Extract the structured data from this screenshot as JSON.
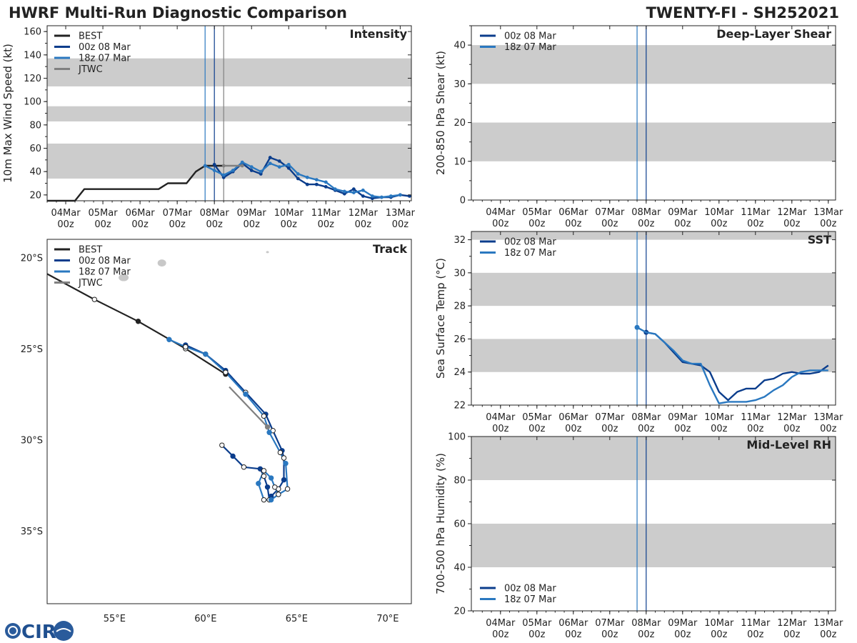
{
  "header": {
    "left_title": "HWRF Multi-Run Diagnostic Comparison",
    "right_title": "TWENTY-FI - SH252021"
  },
  "logo": {
    "text": "CIRA"
  },
  "colors": {
    "best": "#222222",
    "run00z": "#0b3d8c",
    "run18z": "#2a78c0",
    "jtwc": "#808080",
    "band": "#cccccc"
  },
  "chart_data": [
    {
      "id": "intensity",
      "type": "line",
      "title": "Intensity",
      "ylabel": "10m Max Wind Speed (kt)",
      "xlim": [
        -0.5,
        9.3
      ],
      "ylim": [
        15,
        165
      ],
      "yticks": [
        20,
        40,
        60,
        80,
        100,
        120,
        140,
        160
      ],
      "xticks": [
        {
          "x": 0,
          "line1": "04Mar",
          "line2": "00z"
        },
        {
          "x": 1,
          "line1": "05Mar",
          "line2": "00z"
        },
        {
          "x": 2,
          "line1": "06Mar",
          "line2": "00z"
        },
        {
          "x": 3,
          "line1": "07Mar",
          "line2": "00z"
        },
        {
          "x": 4,
          "line1": "08Mar",
          "line2": "00z"
        },
        {
          "x": 5,
          "line1": "09Mar",
          "line2": "00z"
        },
        {
          "x": 6,
          "line1": "10Mar",
          "line2": "00z"
        },
        {
          "x": 7,
          "line1": "11Mar",
          "line2": "00z"
        },
        {
          "x": 8,
          "line1": "12Mar",
          "line2": "00z"
        },
        {
          "x": 9,
          "line1": "13Mar",
          "line2": "00z"
        }
      ],
      "bands": [
        [
          34,
          64
        ],
        [
          83,
          96
        ],
        [
          113,
          137
        ]
      ],
      "vlines": [
        {
          "x": 3.75,
          "color": "#2a78c0"
        },
        {
          "x": 4.0,
          "color": "#0b3d8c"
        },
        {
          "x": 4.25,
          "color": "#808080"
        }
      ],
      "legend": [
        "BEST",
        "00z 08 Mar",
        "18z 07 Mar",
        "JTWC"
      ],
      "series": [
        {
          "name": "BEST",
          "color": "#222222",
          "marker": false,
          "points": [
            [
              -0.5,
              15
            ],
            [
              0.25,
              15
            ],
            [
              0.5,
              25
            ],
            [
              2.5,
              25
            ],
            [
              2.75,
              30
            ],
            [
              3.25,
              30
            ],
            [
              3.5,
              40
            ],
            [
              3.75,
              45
            ],
            [
              4.0,
              45
            ],
            [
              4.25,
              45
            ]
          ]
        },
        {
          "name": "00z 08 Mar",
          "color": "#0b3d8c",
          "marker": true,
          "points": [
            [
              4.0,
              46
            ],
            [
              4.25,
              35
            ],
            [
              4.5,
              40
            ],
            [
              4.75,
              47
            ],
            [
              5.0,
              41
            ],
            [
              5.25,
              38
            ],
            [
              5.5,
              52
            ],
            [
              5.75,
              49
            ],
            [
              6.0,
              43
            ],
            [
              6.25,
              34
            ],
            [
              6.5,
              29
            ],
            [
              6.75,
              29
            ],
            [
              7.0,
              27
            ],
            [
              7.25,
              24
            ],
            [
              7.5,
              21
            ],
            [
              7.75,
              25
            ],
            [
              8.0,
              19
            ],
            [
              8.25,
              17
            ],
            [
              8.5,
              18
            ],
            [
              8.75,
              18
            ],
            [
              9.0,
              20
            ],
            [
              9.25,
              19
            ]
          ]
        },
        {
          "name": "18z 07 Mar",
          "color": "#2a78c0",
          "marker": true,
          "points": [
            [
              3.75,
              45
            ],
            [
              4.0,
              41
            ],
            [
              4.25,
              37
            ],
            [
              4.5,
              41
            ],
            [
              4.75,
              48
            ],
            [
              5.0,
              44
            ],
            [
              5.25,
              40
            ],
            [
              5.5,
              47
            ],
            [
              5.75,
              44
            ],
            [
              6.0,
              46
            ],
            [
              6.25,
              38
            ],
            [
              6.5,
              35
            ],
            [
              6.75,
              33
            ],
            [
              7.0,
              31
            ],
            [
              7.25,
              25
            ],
            [
              7.5,
              23
            ],
            [
              7.75,
              22
            ],
            [
              8.0,
              24
            ],
            [
              8.25,
              19
            ],
            [
              8.5,
              18
            ],
            [
              8.75,
              19
            ],
            [
              9.0,
              20
            ]
          ]
        },
        {
          "name": "JTWC",
          "color": "#808080",
          "marker": true,
          "points": [
            [
              4.25,
              45
            ],
            [
              4.75,
              45
            ]
          ]
        }
      ]
    },
    {
      "id": "shear",
      "type": "line",
      "title": "Deep-Layer Shear",
      "ylabel": "200-850 hPa Shear (kt)",
      "xlim": [
        -0.8,
        9.2
      ],
      "ylim": [
        0,
        45
      ],
      "yticks": [
        0,
        10,
        20,
        30,
        40
      ],
      "xticks": [
        {
          "x": 0,
          "line1": "04Mar",
          "line2": "00z"
        },
        {
          "x": 1,
          "line1": "05Mar",
          "line2": "00z"
        },
        {
          "x": 2,
          "line1": "06Mar",
          "line2": "00z"
        },
        {
          "x": 3,
          "line1": "07Mar",
          "line2": "00z"
        },
        {
          "x": 4,
          "line1": "08Mar",
          "line2": "00z"
        },
        {
          "x": 5,
          "line1": "09Mar",
          "line2": "00z"
        },
        {
          "x": 6,
          "line1": "10Mar",
          "line2": "00z"
        },
        {
          "x": 7,
          "line1": "11Mar",
          "line2": "00z"
        },
        {
          "x": 8,
          "line1": "12Mar",
          "line2": "00z"
        },
        {
          "x": 9,
          "line1": "13Mar",
          "line2": "00z"
        }
      ],
      "bands": [
        [
          10,
          20
        ],
        [
          30,
          40
        ]
      ],
      "vlines": [
        {
          "x": 3.75,
          "color": "#2a78c0"
        },
        {
          "x": 4.0,
          "color": "#0b3d8c"
        }
      ],
      "legend": [
        "00z 08 Mar",
        "18z 07 Mar"
      ],
      "series": []
    },
    {
      "id": "sst",
      "type": "line",
      "title": "SST",
      "ylabel": "Sea Surface Temp (°C)",
      "xlim": [
        -0.8,
        9.2
      ],
      "ylim": [
        22,
        32.5
      ],
      "yticks": [
        22,
        24,
        26,
        28,
        30,
        32
      ],
      "xticks": [
        {
          "x": 0,
          "line1": "04Mar",
          "line2": "00z"
        },
        {
          "x": 1,
          "line1": "05Mar",
          "line2": "00z"
        },
        {
          "x": 2,
          "line1": "06Mar",
          "line2": "00z"
        },
        {
          "x": 3,
          "line1": "07Mar",
          "line2": "00z"
        },
        {
          "x": 4,
          "line1": "08Mar",
          "line2": "00z"
        },
        {
          "x": 5,
          "line1": "09Mar",
          "line2": "00z"
        },
        {
          "x": 6,
          "line1": "10Mar",
          "line2": "00z"
        },
        {
          "x": 7,
          "line1": "11Mar",
          "line2": "00z"
        },
        {
          "x": 8,
          "line1": "12Mar",
          "line2": "00z"
        },
        {
          "x": 9,
          "line1": "13Mar",
          "line2": "00z"
        }
      ],
      "bands": [
        [
          24,
          26
        ],
        [
          28,
          30
        ],
        [
          32,
          32.5
        ]
      ],
      "vlines": [
        {
          "x": 3.75,
          "color": "#2a78c0"
        },
        {
          "x": 4.0,
          "color": "#0b3d8c"
        }
      ],
      "legend": [
        "00z 08 Mar",
        "18z 07 Mar"
      ],
      "series": [
        {
          "name": "00z 08 Mar",
          "color": "#0b3d8c",
          "marker": false,
          "startDot": true,
          "points": [
            [
              4.0,
              26.4
            ],
            [
              4.25,
              26.3
            ],
            [
              4.5,
              25.8
            ],
            [
              4.75,
              25.2
            ],
            [
              5.0,
              24.6
            ],
            [
              5.25,
              24.5
            ],
            [
              5.5,
              24.4
            ],
            [
              5.75,
              24.0
            ],
            [
              6.0,
              22.8
            ],
            [
              6.25,
              22.3
            ],
            [
              6.5,
              22.8
            ],
            [
              6.75,
              23.0
            ],
            [
              7.0,
              23.0
            ],
            [
              7.25,
              23.5
            ],
            [
              7.5,
              23.6
            ],
            [
              7.75,
              23.9
            ],
            [
              8.0,
              24.0
            ],
            [
              8.25,
              23.9
            ],
            [
              8.5,
              23.9
            ],
            [
              8.75,
              24.0
            ],
            [
              9.0,
              24.4
            ]
          ]
        },
        {
          "name": "18z 07 Mar",
          "color": "#2a78c0",
          "marker": false,
          "startDot": true,
          "points": [
            [
              3.75,
              26.7
            ],
            [
              4.0,
              26.4
            ],
            [
              4.25,
              26.3
            ],
            [
              4.5,
              25.8
            ],
            [
              4.75,
              25.3
            ],
            [
              5.0,
              24.7
            ],
            [
              5.25,
              24.5
            ],
            [
              5.5,
              24.5
            ],
            [
              5.75,
              23.2
            ],
            [
              6.0,
              22.1
            ],
            [
              6.25,
              22.2
            ],
            [
              6.5,
              22.2
            ],
            [
              6.75,
              22.2
            ],
            [
              7.0,
              22.3
            ],
            [
              7.25,
              22.5
            ],
            [
              7.5,
              22.9
            ],
            [
              7.75,
              23.2
            ],
            [
              8.0,
              23.7
            ],
            [
              8.25,
              24.0
            ],
            [
              8.5,
              24.1
            ],
            [
              8.75,
              24.1
            ],
            [
              9.0,
              24.1
            ]
          ]
        }
      ]
    },
    {
      "id": "rh",
      "type": "line",
      "title": "Mid-Level RH",
      "ylabel": "700-500 hPa Humidity (%)",
      "xlim": [
        -0.8,
        9.2
      ],
      "ylim": [
        20,
        100
      ],
      "yticks": [
        20,
        40,
        60,
        80,
        100
      ],
      "xticks": [
        {
          "x": 0,
          "line1": "04Mar",
          "line2": "00z"
        },
        {
          "x": 1,
          "line1": "05Mar",
          "line2": "00z"
        },
        {
          "x": 2,
          "line1": "06Mar",
          "line2": "00z"
        },
        {
          "x": 3,
          "line1": "07Mar",
          "line2": "00z"
        },
        {
          "x": 4,
          "line1": "08Mar",
          "line2": "00z"
        },
        {
          "x": 5,
          "line1": "09Mar",
          "line2": "00z"
        },
        {
          "x": 6,
          "line1": "10Mar",
          "line2": "00z"
        },
        {
          "x": 7,
          "line1": "11Mar",
          "line2": "00z"
        },
        {
          "x": 8,
          "line1": "12Mar",
          "line2": "00z"
        },
        {
          "x": 9,
          "line1": "13Mar",
          "line2": "00z"
        }
      ],
      "bands": [
        [
          40,
          60
        ],
        [
          80,
          100
        ]
      ],
      "vlines": [
        {
          "x": 3.75,
          "color": "#2a78c0"
        },
        {
          "x": 4.0,
          "color": "#0b3d8c"
        }
      ],
      "legend": [
        "00z 08 Mar",
        "18z 07 Mar"
      ],
      "series": []
    },
    {
      "id": "track",
      "type": "scatter",
      "title": "Track",
      "xlim": [
        51.3,
        71.3
      ],
      "ylim": [
        -39.0,
        -19.0
      ],
      "xticks": [
        {
          "v": 55,
          "label": "55°E"
        },
        {
          "v": 60,
          "label": "60°E"
        },
        {
          "v": 65,
          "label": "65°E"
        },
        {
          "v": 70,
          "label": "70°E"
        }
      ],
      "yticks": [
        {
          "v": -20,
          "label": "20°S"
        },
        {
          "v": -25,
          "label": "25°S"
        },
        {
          "v": -30,
          "label": "30°S"
        },
        {
          "v": -35,
          "label": "35°S"
        }
      ],
      "legend": [
        "BEST",
        "00z 08 Mar",
        "18z 07 Mar",
        "JTWC"
      ],
      "series": [
        {
          "name": "BEST",
          "color": "#222222",
          "markers": "alt",
          "points": [
            [
              51.3,
              -20.9
            ],
            [
              53.9,
              -22.3
            ],
            [
              56.3,
              -23.5
            ],
            [
              58.9,
              -25.0
            ],
            [
              61.1,
              -26.4
            ]
          ]
        },
        {
          "name": "00z 08 Mar",
          "color": "#0b3d8c",
          "markers": "alt",
          "points": [
            [
              58.9,
              -24.8
            ],
            [
              60.0,
              -25.3
            ],
            [
              61.1,
              -26.2
            ],
            [
              62.2,
              -27.4
            ],
            [
              63.3,
              -28.6
            ],
            [
              63.7,
              -29.5
            ],
            [
              64.2,
              -30.6
            ],
            [
              64.3,
              -31.0
            ],
            [
              64.3,
              -32.2
            ],
            [
              64.0,
              -32.7
            ],
            [
              63.6,
              -33.1
            ],
            [
              63.5,
              -33.3
            ],
            [
              63.4,
              -32.6
            ],
            [
              63.2,
              -32.0
            ],
            [
              63.0,
              -31.6
            ],
            [
              62.1,
              -31.5
            ],
            [
              61.5,
              -30.9
            ],
            [
              60.9,
              -30.3
            ]
          ]
        },
        {
          "name": "18z 07 Mar",
          "color": "#2a78c0",
          "markers": "alt",
          "points": [
            [
              58.0,
              -24.5
            ],
            [
              58.9,
              -24.9
            ],
            [
              60.0,
              -25.3
            ],
            [
              61.1,
              -26.3
            ],
            [
              62.2,
              -27.5
            ],
            [
              63.2,
              -28.7
            ],
            [
              63.5,
              -29.6
            ],
            [
              64.1,
              -30.7
            ],
            [
              64.4,
              -31.3
            ],
            [
              64.5,
              -32.7
            ],
            [
              64.0,
              -33.0
            ],
            [
              63.8,
              -32.6
            ],
            [
              63.6,
              -32.1
            ],
            [
              63.2,
              -31.7
            ],
            [
              62.9,
              -32.4
            ],
            [
              63.2,
              -33.3
            ],
            [
              63.6,
              -33.3
            ],
            [
              64.0,
              -33.0
            ]
          ]
        },
        {
          "name": "JTWC",
          "color": "#808080",
          "markers": "end",
          "points": [
            [
              61.3,
              -27.1
            ],
            [
              63.4,
              -29.3
            ]
          ]
        }
      ],
      "land": [
        {
          "name": "reunion",
          "lon": 55.5,
          "lat": -21.1
        },
        {
          "name": "mauritius",
          "lon": 57.6,
          "lat": -20.3
        },
        {
          "name": "rodrigues",
          "lon": 63.4,
          "lat": -19.7
        }
      ]
    }
  ]
}
